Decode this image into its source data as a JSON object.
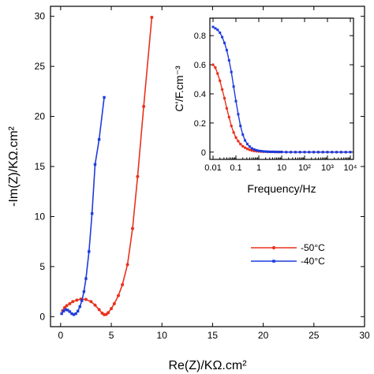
{
  "chart_data": [
    {
      "type": "line",
      "xlabel": "Re(Z)/KΩ.cm²",
      "ylabel": "-Im(Z)/KΩ.cm²",
      "xlim": [
        -1,
        30
      ],
      "ylim": [
        -1,
        31
      ],
      "xticks": [
        "0",
        "5",
        "10",
        "15",
        "20",
        "25",
        "30"
      ],
      "yticks": [
        "0",
        "5",
        "10",
        "15",
        "20",
        "25",
        "30"
      ],
      "grid": false,
      "legend_position": "right",
      "series": [
        {
          "name": "-50°C",
          "color": "#e8321e",
          "marker": "circle",
          "x": [
            0.2,
            0.4,
            0.6,
            0.9,
            1.2,
            1.6,
            2.0,
            2.5,
            3.0,
            3.4,
            3.8,
            4.1,
            4.3,
            4.5,
            4.7,
            5.0,
            5.3,
            5.7,
            6.1,
            6.6,
            7.1,
            7.6,
            8.2,
            9.0
          ],
          "y": [
            0.6,
            0.9,
            1.1,
            1.3,
            1.5,
            1.65,
            1.75,
            1.72,
            1.5,
            1.15,
            0.7,
            0.35,
            0.2,
            0.22,
            0.4,
            0.8,
            1.3,
            2.1,
            3.2,
            5.2,
            8.8,
            14.0,
            21.0,
            29.9
          ]
        },
        {
          "name": "-40°C",
          "color": "#1e3cdc",
          "marker": "square",
          "x": [
            0.1,
            0.3,
            0.5,
            0.7,
            0.9,
            1.1,
            1.3,
            1.5,
            1.7,
            1.9,
            2.1,
            2.3,
            2.5,
            2.8,
            3.1,
            3.4,
            3.8,
            4.3
          ],
          "y": [
            0.3,
            0.55,
            0.7,
            0.65,
            0.5,
            0.3,
            0.2,
            0.3,
            0.55,
            1.0,
            1.6,
            2.5,
            3.8,
            6.5,
            10.3,
            15.2,
            17.7,
            21.9
          ]
        }
      ]
    },
    {
      "type": "line",
      "xlabel": "Frequency/Hz",
      "ylabel": "C'/F.cm⁻³",
      "x_scale": "log",
      "xlim": [
        0.01,
        10000
      ],
      "ylim": [
        -0.05,
        0.92
      ],
      "xticks": [
        "0.01",
        "0.1",
        "1",
        "10",
        "10²",
        "10³",
        "10⁴"
      ],
      "yticks": [
        "0",
        "0.2",
        "0.4",
        "0.6",
        "0.8"
      ],
      "grid": false,
      "series": [
        {
          "name": "-50°C",
          "color": "#e8321e",
          "marker": "circle",
          "x": [
            0.01,
            0.0126,
            0.0158,
            0.02,
            0.0251,
            0.0316,
            0.0398,
            0.0501,
            0.0631,
            0.0794,
            0.1,
            0.126,
            0.158,
            0.2,
            0.251,
            0.316,
            0.398,
            0.501,
            0.631,
            0.794,
            1,
            1.26,
            1.58,
            2,
            2.51,
            3.16,
            3.98,
            5.01,
            6.31,
            7.94,
            10,
            15.8,
            25.1,
            39.8,
            63.1,
            100,
            158,
            251,
            398,
            631,
            1000,
            1585,
            2512,
            3981,
            6310,
            10000
          ],
          "y": [
            0.6,
            0.58,
            0.54,
            0.49,
            0.43,
            0.37,
            0.3,
            0.24,
            0.18,
            0.135,
            0.1,
            0.075,
            0.055,
            0.04,
            0.03,
            0.022,
            0.016,
            0.011,
            0.008,
            0.006,
            0.005,
            0.004,
            0.003,
            0.003,
            0.002,
            0.002,
            0.002,
            0.001,
            0.001,
            0.001,
            0.001,
            0,
            0,
            0,
            0,
            0,
            0,
            0,
            0,
            0,
            0,
            0,
            0,
            0,
            0,
            0
          ]
        },
        {
          "name": "-40°C",
          "color": "#1e3cdc",
          "marker": "square",
          "x": [
            0.01,
            0.0126,
            0.0158,
            0.02,
            0.0251,
            0.0316,
            0.0398,
            0.0501,
            0.0631,
            0.0794,
            0.1,
            0.126,
            0.158,
            0.2,
            0.251,
            0.316,
            0.398,
            0.501,
            0.631,
            0.794,
            1,
            1.26,
            1.58,
            2,
            2.51,
            3.16,
            3.98,
            5.01,
            6.31,
            7.94,
            10,
            15.8,
            25.1,
            39.8,
            63.1,
            100,
            158,
            251,
            398,
            631,
            1000,
            1585,
            2512,
            3981,
            6310,
            10000
          ],
          "y": [
            0.86,
            0.85,
            0.84,
            0.82,
            0.79,
            0.75,
            0.7,
            0.63,
            0.55,
            0.45,
            0.35,
            0.26,
            0.18,
            0.12,
            0.08,
            0.055,
            0.038,
            0.026,
            0.018,
            0.013,
            0.009,
            0.007,
            0.005,
            0.004,
            0.003,
            0.002,
            0.002,
            0.002,
            0.001,
            0.001,
            0.001,
            0,
            0,
            0,
            0,
            0,
            0,
            0,
            0,
            0,
            0,
            0,
            0,
            0,
            0,
            0
          ]
        }
      ]
    }
  ]
}
